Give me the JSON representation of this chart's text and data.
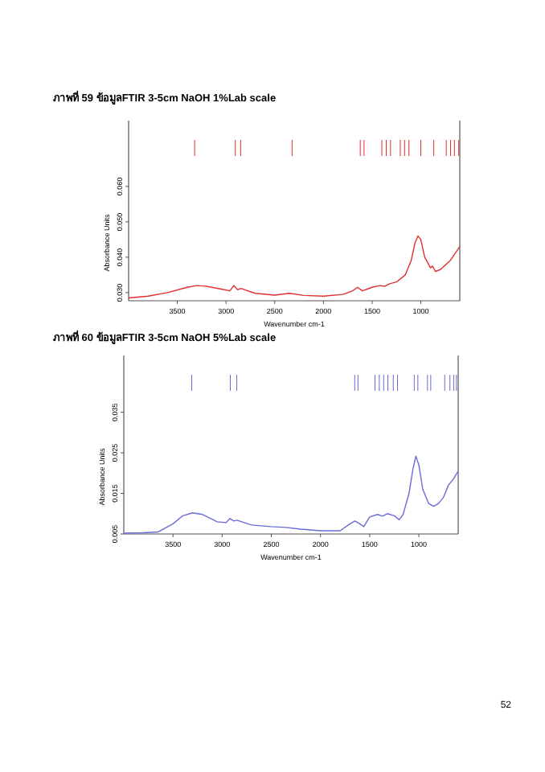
{
  "chart_data": [
    {
      "type": "line",
      "title": "ภาพที่ 59 ข้อมูลFTIR 3-5cm NaOH 1%Lab scale",
      "xlabel": "Wavenumber cm-1",
      "ylabel": "Absorbance Units",
      "xlim": [
        4000,
        600
      ],
      "xticks": [
        3500,
        3000,
        2500,
        2000,
        1500,
        1000
      ],
      "ylim": [
        0.0277,
        0.0786
      ],
      "yticks": [
        {
          "value": 0.03,
          "label": "0.030"
        },
        {
          "value": 0.04,
          "label": "0.040"
        },
        {
          "value": 0.05,
          "label": "0.050"
        },
        {
          "value": 0.06,
          "label": "0.060"
        }
      ],
      "grid": false,
      "x": [
        4000,
        3800,
        3600,
        3400,
        3300,
        3200,
        3050,
        2960,
        2920,
        2880,
        2850,
        2700,
        2500,
        2350,
        2200,
        2000,
        1800,
        1700,
        1650,
        1600,
        1550,
        1500,
        1420,
        1370,
        1320,
        1250,
        1160,
        1100,
        1060,
        1030,
        1000,
        960,
        900,
        880,
        850,
        800,
        700,
        650,
        600
      ],
      "series": [
        {
          "color": "#e03030",
          "values": [
            0.0285,
            0.029,
            0.03,
            0.0315,
            0.032,
            0.0318,
            0.031,
            0.0305,
            0.032,
            0.0308,
            0.0312,
            0.0298,
            0.0293,
            0.0298,
            0.0292,
            0.029,
            0.0295,
            0.0305,
            0.0315,
            0.0305,
            0.031,
            0.0315,
            0.032,
            0.0318,
            0.0325,
            0.033,
            0.035,
            0.039,
            0.044,
            0.046,
            0.045,
            0.04,
            0.037,
            0.0375,
            0.036,
            0.0365,
            0.039,
            0.041,
            0.043
          ]
        }
      ],
      "ref_lines": [
        {
          "axis": "x",
          "value": 3322,
          "color": "#e03030"
        },
        {
          "axis": "x",
          "value": 2905,
          "color": "#e03030"
        },
        {
          "axis": "x",
          "value": 2850,
          "color": "#e03030"
        },
        {
          "axis": "x",
          "value": 2322,
          "color": "#e03030"
        },
        {
          "axis": "x",
          "value": 1622,
          "color": "#e03030"
        },
        {
          "axis": "x",
          "value": 1583,
          "color": "#e03030"
        },
        {
          "axis": "x",
          "value": 1400,
          "color": "#e03030"
        },
        {
          "axis": "x",
          "value": 1355,
          "color": "#e03030"
        },
        {
          "axis": "x",
          "value": 1311,
          "color": "#e03030"
        },
        {
          "axis": "x",
          "value": 1211,
          "color": "#e03030"
        },
        {
          "axis": "x",
          "value": 1167,
          "color": "#e03030"
        },
        {
          "axis": "x",
          "value": 1122,
          "color": "#e03030"
        },
        {
          "axis": "x",
          "value": 1000,
          "color": "#e03030"
        },
        {
          "axis": "x",
          "value": 867,
          "color": "#e03030"
        },
        {
          "axis": "x",
          "value": 739,
          "color": "#e03030"
        },
        {
          "axis": "x",
          "value": 695,
          "color": "#e03030"
        },
        {
          "axis": "x",
          "value": 655,
          "color": "#e03030"
        },
        {
          "axis": "x",
          "value": 611,
          "color": "#e03030"
        }
      ]
    },
    {
      "type": "line",
      "title": "ภาพที่ 60 ข้อมูลFTIR 3-5cm NaOH 5%Lab scale",
      "xlabel": "Wavenumber cm-1",
      "ylabel": "Absorbance Units",
      "xlim": [
        4000,
        600
      ],
      "xticks": [
        3500,
        3000,
        2500,
        2000,
        1500,
        1000
      ],
      "ylim": [
        0.005,
        0.049
      ],
      "yticks": [
        0.005,
        0.015,
        0.025,
        0.035
      ],
      "grid": false,
      "annotations": [
        "52"
      ],
      "x": [
        4000,
        3800,
        3650,
        3500,
        3400,
        3300,
        3200,
        3050,
        2960,
        2920,
        2880,
        2850,
        2700,
        2500,
        2350,
        2200,
        2000,
        1800,
        1700,
        1650,
        1600,
        1560,
        1500,
        1420,
        1370,
        1320,
        1250,
        1200,
        1160,
        1100,
        1060,
        1030,
        1000,
        960,
        900,
        850,
        800,
        750,
        700,
        650,
        600
      ],
      "series": [
        {
          "color": "#6a6ad8",
          "values": [
            0.0052,
            0.0053,
            0.0055,
            0.0075,
            0.0095,
            0.0102,
            0.0098,
            0.008,
            0.0078,
            0.0088,
            0.0082,
            0.0084,
            0.0072,
            0.0068,
            0.0066,
            0.0062,
            0.0058,
            0.0058,
            0.0075,
            0.0082,
            0.0075,
            0.0068,
            0.0092,
            0.0098,
            0.0094,
            0.01,
            0.0095,
            0.0085,
            0.0098,
            0.015,
            0.021,
            0.0242,
            0.022,
            0.016,
            0.0125,
            0.0118,
            0.0125,
            0.014,
            0.017,
            0.0185,
            0.0205
          ]
        }
      ],
      "ref_lines": [
        {
          "axis": "x",
          "value": 3309,
          "color": "#6a6ad8"
        },
        {
          "axis": "x",
          "value": 2917,
          "color": "#6a6ad8"
        },
        {
          "axis": "x",
          "value": 2851,
          "color": "#6a6ad8"
        },
        {
          "axis": "x",
          "value": 1652,
          "color": "#6a6ad8"
        },
        {
          "axis": "x",
          "value": 1619,
          "color": "#6a6ad8"
        },
        {
          "axis": "x",
          "value": 1446,
          "color": "#6a6ad8"
        },
        {
          "axis": "x",
          "value": 1402,
          "color": "#6a6ad8"
        },
        {
          "axis": "x",
          "value": 1358,
          "color": "#6a6ad8"
        },
        {
          "axis": "x",
          "value": 1315,
          "color": "#6a6ad8"
        },
        {
          "axis": "x",
          "value": 1260,
          "color": "#6a6ad8"
        },
        {
          "axis": "x",
          "value": 1217,
          "color": "#6a6ad8"
        },
        {
          "axis": "x",
          "value": 1047,
          "color": "#6a6ad8"
        },
        {
          "axis": "x",
          "value": 1010,
          "color": "#6a6ad8"
        },
        {
          "axis": "x",
          "value": 912,
          "color": "#6a6ad8"
        },
        {
          "axis": "x",
          "value": 879,
          "color": "#6a6ad8"
        },
        {
          "axis": "x",
          "value": 737,
          "color": "#6a6ad8"
        },
        {
          "axis": "x",
          "value": 684,
          "color": "#6a6ad8"
        },
        {
          "axis": "x",
          "value": 646,
          "color": "#6a6ad8"
        },
        {
          "axis": "x",
          "value": 618,
          "color": "#6a6ad8"
        }
      ]
    }
  ]
}
